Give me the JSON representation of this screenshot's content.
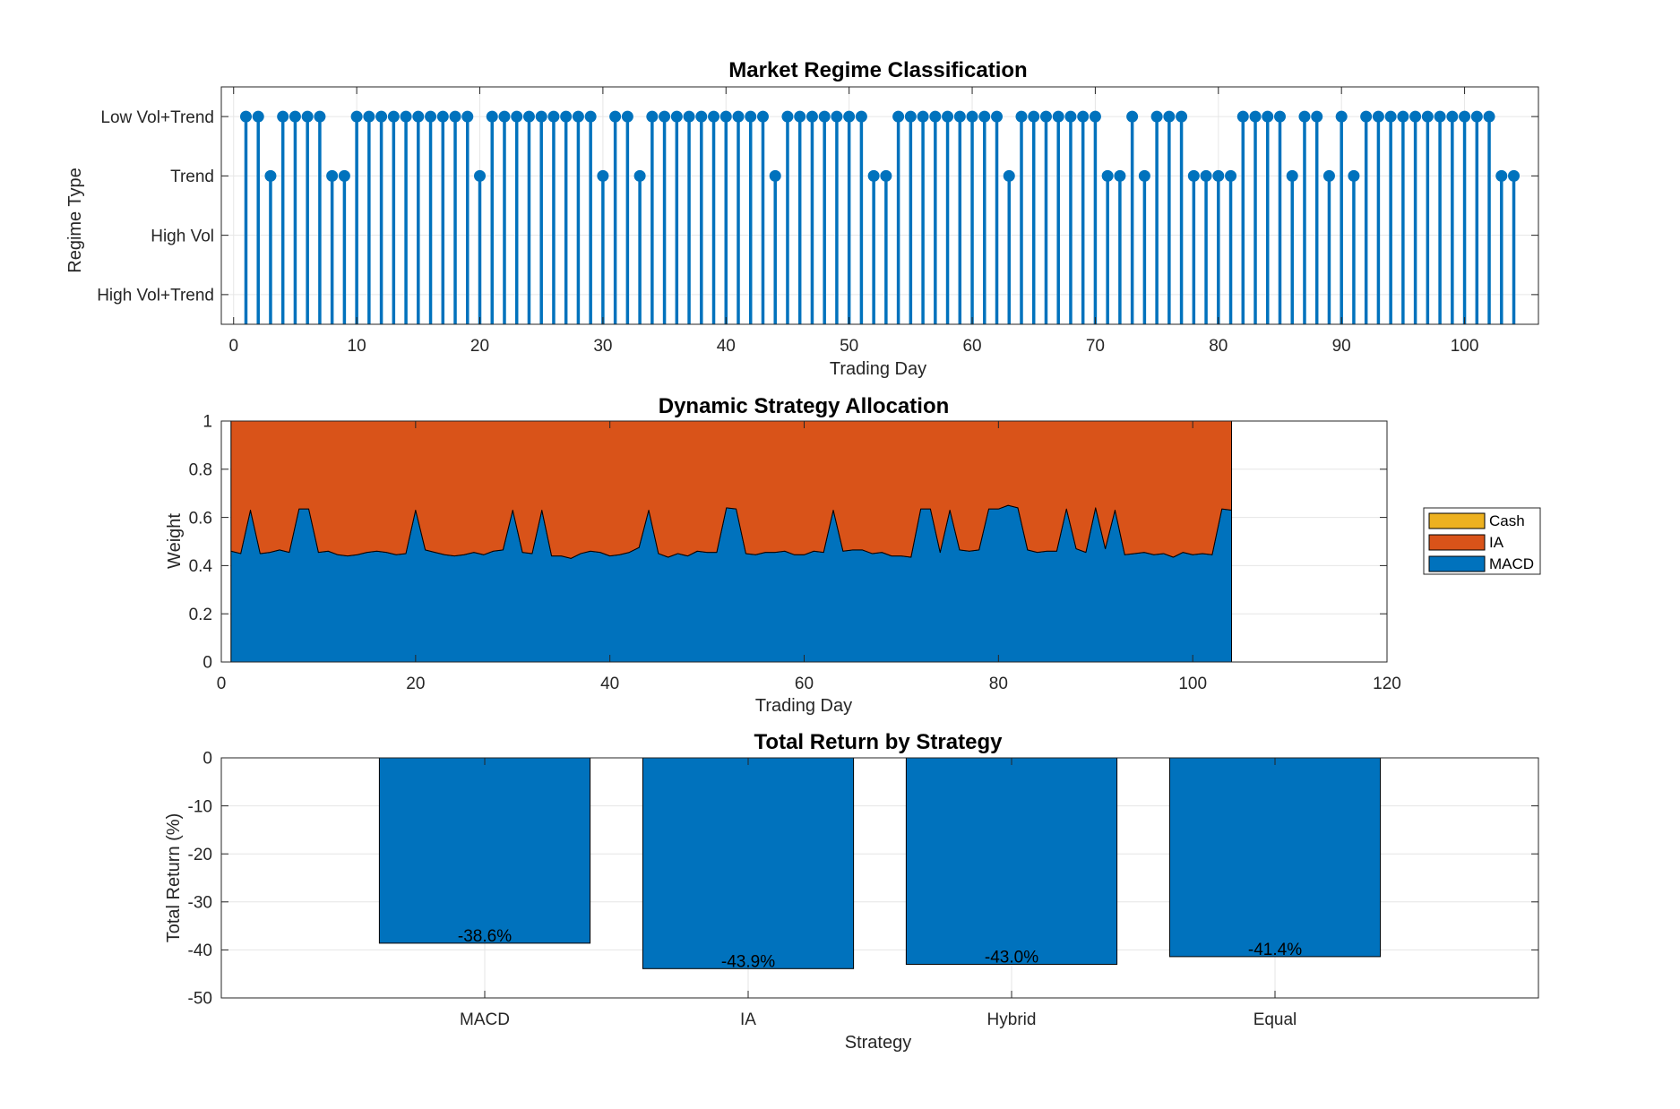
{
  "colors": {
    "blue": "#0072BD",
    "orange": "#D95319",
    "yellow": "#EDB120",
    "grid": "#e6e6e6",
    "axis": "#262626"
  },
  "chart_data": [
    {
      "type": "stem",
      "title": "Market Regime Classification",
      "xlabel": "Trading Day",
      "ylabel": "Regime Type",
      "xlim": [
        -1,
        106
      ],
      "ylim": [
        0.5,
        4.5
      ],
      "xticks": [
        "0",
        "10",
        "20",
        "30",
        "40",
        "50",
        "60",
        "70",
        "80",
        "90",
        "100"
      ],
      "xtick_values": [
        0,
        10,
        20,
        30,
        40,
        50,
        60,
        70,
        80,
        90,
        100
      ],
      "ytick_values": [
        1,
        2,
        3,
        4
      ],
      "yticks": [
        "High Vol+Trend",
        "High Vol",
        "Trend",
        "Low Vol+Trend"
      ],
      "grid": true,
      "x": [
        1,
        2,
        3,
        4,
        5,
        6,
        7,
        8,
        9,
        10,
        11,
        12,
        13,
        14,
        15,
        16,
        17,
        18,
        19,
        20,
        21,
        22,
        23,
        24,
        25,
        26,
        27,
        28,
        29,
        30,
        31,
        32,
        33,
        34,
        35,
        36,
        37,
        38,
        39,
        40,
        41,
        42,
        43,
        44,
        45,
        46,
        47,
        48,
        49,
        50,
        51,
        52,
        53,
        54,
        55,
        56,
        57,
        58,
        59,
        60,
        61,
        62,
        63,
        64,
        65,
        66,
        67,
        68,
        69,
        70,
        71,
        72,
        73,
        74,
        75,
        76,
        77,
        78,
        79,
        80,
        81,
        82,
        83,
        84,
        85,
        86,
        87,
        88,
        89,
        90,
        91,
        92,
        93,
        94,
        95,
        96,
        97,
        98,
        99,
        100,
        101,
        102,
        103,
        104
      ],
      "values": [
        4,
        4,
        3,
        4,
        4,
        4,
        4,
        3,
        3,
        4,
        4,
        4,
        4,
        4,
        4,
        4,
        4,
        4,
        4,
        3,
        4,
        4,
        4,
        4,
        4,
        4,
        4,
        4,
        4,
        3,
        4,
        4,
        3,
        4,
        4,
        4,
        4,
        4,
        4,
        4,
        4,
        4,
        4,
        3,
        4,
        4,
        4,
        4,
        4,
        4,
        4,
        3,
        3,
        4,
        4,
        4,
        4,
        4,
        4,
        4,
        4,
        4,
        3,
        4,
        4,
        4,
        4,
        4,
        4,
        4,
        3,
        3,
        4,
        3,
        4,
        4,
        4,
        3,
        3,
        3,
        3,
        4,
        4,
        4,
        4,
        3,
        4,
        4,
        3,
        4,
        3,
        4,
        4,
        4,
        4,
        4,
        4,
        4,
        4,
        4,
        4,
        4,
        3,
        3
      ]
    },
    {
      "type": "area",
      "title": "Dynamic Strategy Allocation",
      "xlabel": "Trading Day",
      "ylabel": "Weight",
      "xlim": [
        0,
        120
      ],
      "ylim": [
        0,
        1
      ],
      "xticks": [
        "0",
        "20",
        "40",
        "60",
        "80",
        "100",
        "120"
      ],
      "xtick_values": [
        0,
        20,
        40,
        60,
        80,
        100,
        120
      ],
      "yticks": [
        "0",
        "0.2",
        "0.4",
        "0.6",
        "0.8",
        "1"
      ],
      "ytick_values": [
        0,
        0.2,
        0.4,
        0.6,
        0.8,
        1
      ],
      "grid": true,
      "legend_position": "outside-right",
      "legend": [
        "Cash",
        "IA",
        "MACD"
      ],
      "x": [
        1,
        2,
        3,
        4,
        5,
        6,
        7,
        8,
        9,
        10,
        11,
        12,
        13,
        14,
        15,
        16,
        17,
        18,
        19,
        20,
        21,
        22,
        23,
        24,
        25,
        26,
        27,
        28,
        29,
        30,
        31,
        32,
        33,
        34,
        35,
        36,
        37,
        38,
        39,
        40,
        41,
        42,
        43,
        44,
        45,
        46,
        47,
        48,
        49,
        50,
        51,
        52,
        53,
        54,
        55,
        56,
        57,
        58,
        59,
        60,
        61,
        62,
        63,
        64,
        65,
        66,
        67,
        68,
        69,
        70,
        71,
        72,
        73,
        74,
        75,
        76,
        77,
        78,
        79,
        80,
        81,
        82,
        83,
        84,
        85,
        86,
        87,
        88,
        89,
        90,
        91,
        92,
        93,
        94,
        95,
        96,
        97,
        98,
        99,
        100,
        101,
        102,
        103,
        104
      ],
      "series": [
        {
          "name": "MACD",
          "color_key": "blue",
          "values": [
            0.46,
            0.45,
            0.63,
            0.45,
            0.455,
            0.465,
            0.455,
            0.635,
            0.635,
            0.455,
            0.46,
            0.445,
            0.44,
            0.445,
            0.455,
            0.46,
            0.455,
            0.445,
            0.45,
            0.63,
            0.465,
            0.455,
            0.445,
            0.44,
            0.445,
            0.455,
            0.445,
            0.46,
            0.465,
            0.63,
            0.455,
            0.45,
            0.63,
            0.44,
            0.44,
            0.43,
            0.45,
            0.46,
            0.455,
            0.44,
            0.445,
            0.455,
            0.475,
            0.63,
            0.45,
            0.435,
            0.45,
            0.44,
            0.46,
            0.455,
            0.455,
            0.64,
            0.635,
            0.45,
            0.445,
            0.455,
            0.455,
            0.46,
            0.445,
            0.445,
            0.46,
            0.455,
            0.63,
            0.46,
            0.465,
            0.465,
            0.45,
            0.455,
            0.44,
            0.44,
            0.435,
            0.635,
            0.635,
            0.455,
            0.63,
            0.465,
            0.46,
            0.465,
            0.635,
            0.635,
            0.65,
            0.64,
            0.465,
            0.455,
            0.46,
            0.46,
            0.635,
            0.47,
            0.455,
            0.64,
            0.47,
            0.63,
            0.445,
            0.45,
            0.455,
            0.445,
            0.45,
            0.435,
            0.455,
            0.445,
            0.45,
            0.445,
            0.635,
            0.63
          ]
        },
        {
          "name": "IA",
          "color_key": "orange",
          "values": [
            0.54,
            0.55,
            0.37,
            0.55,
            0.545,
            0.535,
            0.545,
            0.365,
            0.365,
            0.545,
            0.54,
            0.555,
            0.56,
            0.555,
            0.545,
            0.54,
            0.545,
            0.555,
            0.55,
            0.37,
            0.535,
            0.545,
            0.555,
            0.56,
            0.555,
            0.545,
            0.555,
            0.54,
            0.535,
            0.37,
            0.545,
            0.55,
            0.37,
            0.56,
            0.56,
            0.57,
            0.55,
            0.54,
            0.545,
            0.56,
            0.555,
            0.545,
            0.525,
            0.37,
            0.55,
            0.565,
            0.55,
            0.56,
            0.54,
            0.545,
            0.545,
            0.36,
            0.365,
            0.55,
            0.555,
            0.545,
            0.545,
            0.54,
            0.555,
            0.555,
            0.54,
            0.545,
            0.37,
            0.54,
            0.535,
            0.535,
            0.55,
            0.545,
            0.56,
            0.56,
            0.565,
            0.365,
            0.365,
            0.545,
            0.37,
            0.535,
            0.54,
            0.535,
            0.365,
            0.365,
            0.35,
            0.36,
            0.535,
            0.545,
            0.54,
            0.54,
            0.365,
            0.53,
            0.545,
            0.36,
            0.53,
            0.37,
            0.555,
            0.55,
            0.545,
            0.555,
            0.55,
            0.565,
            0.545,
            0.555,
            0.55,
            0.555,
            0.365,
            0.37
          ]
        },
        {
          "name": "Cash",
          "color_key": "yellow",
          "values": [
            0,
            0,
            0,
            0,
            0,
            0,
            0,
            0,
            0,
            0,
            0,
            0,
            0,
            0,
            0,
            0,
            0,
            0,
            0,
            0,
            0,
            0,
            0,
            0,
            0,
            0,
            0,
            0,
            0,
            0,
            0,
            0,
            0,
            0,
            0,
            0,
            0,
            0,
            0,
            0,
            0,
            0,
            0,
            0,
            0,
            0,
            0,
            0,
            0,
            0,
            0,
            0,
            0,
            0,
            0,
            0,
            0,
            0,
            0,
            0,
            0,
            0,
            0,
            0,
            0,
            0,
            0,
            0,
            0,
            0,
            0,
            0,
            0,
            0,
            0,
            0,
            0,
            0,
            0,
            0,
            0,
            0,
            0,
            0,
            0,
            0,
            0,
            0,
            0,
            0,
            0,
            0,
            0,
            0,
            0,
            0,
            0,
            0,
            0,
            0,
            0,
            0,
            0,
            0
          ]
        }
      ]
    },
    {
      "type": "bar",
      "title": "Total Return by Strategy",
      "xlabel": "Strategy",
      "ylabel": "Total Return (%)",
      "categories": [
        "MACD",
        "IA",
        "Hybrid",
        "Equal"
      ],
      "values": [
        -38.6,
        -43.9,
        -43.0,
        -41.4
      ],
      "data_labels": [
        "-38.6%",
        "-43.9%",
        "-43.0%",
        "-41.4%"
      ],
      "xlim": [
        0,
        5
      ],
      "ylim": [
        -50,
        0
      ],
      "yticks": [
        "-50",
        "-40",
        "-30",
        "-20",
        "-10",
        "0"
      ],
      "ytick_values": [
        -50,
        -40,
        -30,
        -20,
        -10,
        0
      ],
      "grid": true
    }
  ]
}
